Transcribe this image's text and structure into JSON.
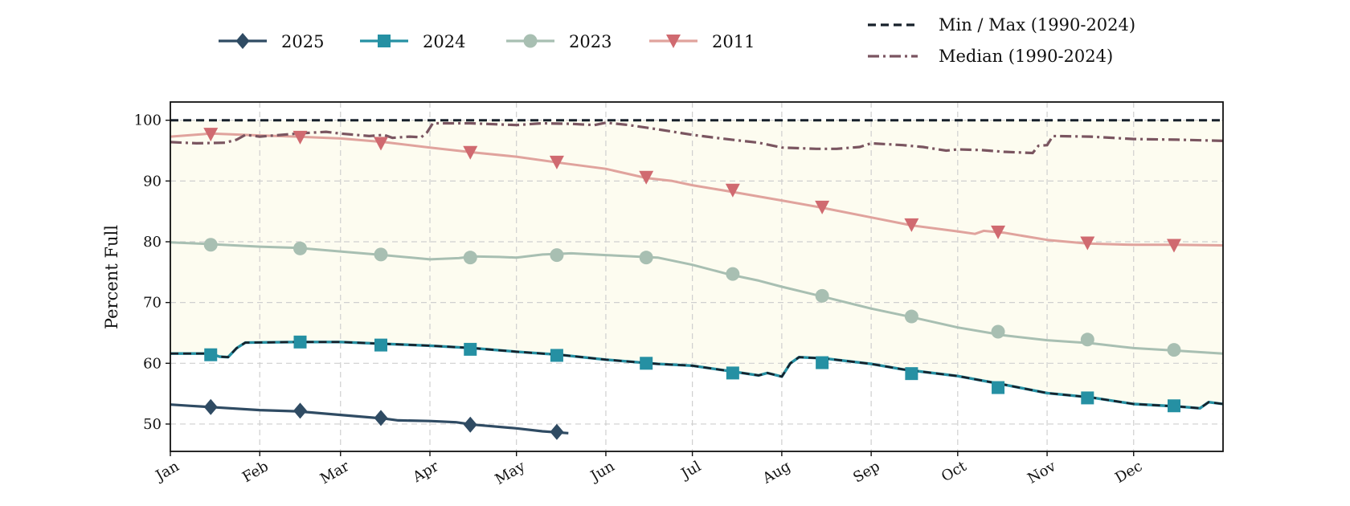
{
  "chart_data": {
    "type": "line",
    "ylabel": "Percent Full",
    "xlabel": "",
    "ylim": [
      45.5,
      103
    ],
    "yticks": [
      50,
      60,
      70,
      80,
      90,
      100
    ],
    "x_range": [
      1,
      366
    ],
    "x_unit": "day of year",
    "month_ticks": [
      {
        "label": "Jan",
        "day": 1
      },
      {
        "label": "Feb",
        "day": 32
      },
      {
        "label": "Mar",
        "day": 60
      },
      {
        "label": "Apr",
        "day": 91
      },
      {
        "label": "May",
        "day": 121
      },
      {
        "label": "Jun",
        "day": 152
      },
      {
        "label": "Jul",
        "day": 182
      },
      {
        "label": "Aug",
        "day": 213
      },
      {
        "label": "Sep",
        "day": 244
      },
      {
        "label": "Oct",
        "day": 274
      },
      {
        "label": "Nov",
        "day": 305
      },
      {
        "label": "Dec",
        "day": 335
      }
    ],
    "grid": true,
    "legend_placement": "top",
    "band": {
      "name": "Min / Max (1990-2024)",
      "color": "#fdfcf0",
      "line_color": "#17212b",
      "max": [
        [
          1,
          100
        ],
        [
          366,
          100
        ]
      ],
      "min": [
        [
          1,
          61.6
        ],
        [
          15,
          61.6
        ],
        [
          18,
          61.1
        ],
        [
          21,
          61.0
        ],
        [
          24,
          62.5
        ],
        [
          27,
          63.4
        ],
        [
          45,
          63.5
        ],
        [
          60,
          63.5
        ],
        [
          75,
          63.2
        ],
        [
          91,
          62.9
        ],
        [
          106,
          62.5
        ],
        [
          121,
          61.9
        ],
        [
          136,
          61.4
        ],
        [
          152,
          60.6
        ],
        [
          170,
          59.9
        ],
        [
          182,
          59.6
        ],
        [
          195,
          58.7
        ],
        [
          205,
          58.0
        ],
        [
          208,
          58.4
        ],
        [
          213,
          57.8
        ],
        [
          216,
          60.0
        ],
        [
          219,
          61.0
        ],
        [
          228,
          60.8
        ],
        [
          244,
          59.9
        ],
        [
          255,
          59.0
        ],
        [
          274,
          57.9
        ],
        [
          290,
          56.5
        ],
        [
          305,
          55.1
        ],
        [
          320,
          54.4
        ],
        [
          335,
          53.3
        ],
        [
          350,
          52.9
        ],
        [
          358,
          52.6
        ],
        [
          361,
          53.6
        ],
        [
          366,
          53.3
        ]
      ]
    },
    "median": {
      "name": "Median (1990-2024)",
      "color": "#7a5560",
      "points": [
        [
          1,
          96.4
        ],
        [
          10,
          96.2
        ],
        [
          20,
          96.3
        ],
        [
          24,
          96.8
        ],
        [
          27,
          97.6
        ],
        [
          32,
          97.3
        ],
        [
          45,
          97.8
        ],
        [
          55,
          98.1
        ],
        [
          60,
          97.8
        ],
        [
          70,
          97.4
        ],
        [
          75,
          97.6
        ],
        [
          78,
          97.1
        ],
        [
          84,
          97.3
        ],
        [
          88,
          97.2
        ],
        [
          90,
          98.0
        ],
        [
          92,
          99.5
        ],
        [
          105,
          99.5
        ],
        [
          121,
          99.2
        ],
        [
          130,
          99.5
        ],
        [
          140,
          99.4
        ],
        [
          148,
          99.2
        ],
        [
          152,
          99.6
        ],
        [
          160,
          99.2
        ],
        [
          170,
          98.5
        ],
        [
          182,
          97.6
        ],
        [
          192,
          97.0
        ],
        [
          205,
          96.3
        ],
        [
          213,
          95.5
        ],
        [
          225,
          95.3
        ],
        [
          232,
          95.3
        ],
        [
          240,
          95.6
        ],
        [
          244,
          96.2
        ],
        [
          255,
          95.9
        ],
        [
          262,
          95.6
        ],
        [
          270,
          95.0
        ],
        [
          274,
          95.2
        ],
        [
          282,
          95.1
        ],
        [
          290,
          94.8
        ],
        [
          300,
          94.6
        ],
        [
          302,
          95.8
        ],
        [
          305,
          95.9
        ],
        [
          307,
          97.4
        ],
        [
          320,
          97.3
        ],
        [
          335,
          96.9
        ],
        [
          350,
          96.8
        ],
        [
          366,
          96.6
        ]
      ]
    },
    "series": [
      {
        "name": "2025",
        "color": "#2f4b63",
        "marker": "diamond",
        "points": [
          [
            1,
            53.2
          ],
          [
            8,
            53.0
          ],
          [
            15,
            52.8
          ],
          [
            32,
            52.3
          ],
          [
            45,
            52.1
          ],
          [
            60,
            51.5
          ],
          [
            75,
            50.9
          ],
          [
            80,
            50.6
          ],
          [
            91,
            50.5
          ],
          [
            100,
            50.3
          ],
          [
            106,
            49.9
          ],
          [
            121,
            49.3
          ],
          [
            130,
            48.8
          ],
          [
            139,
            48.5
          ]
        ],
        "markers": [
          [
            15,
            52.8
          ],
          [
            46,
            52.2
          ],
          [
            74,
            51.0
          ],
          [
            105,
            49.9
          ],
          [
            135,
            48.7
          ]
        ]
      },
      {
        "name": "2024",
        "color": "#2590a3",
        "marker": "square",
        "points": [
          [
            1,
            61.6
          ],
          [
            15,
            61.6
          ],
          [
            18,
            61.1
          ],
          [
            21,
            61.0
          ],
          [
            24,
            62.5
          ],
          [
            27,
            63.4
          ],
          [
            45,
            63.5
          ],
          [
            60,
            63.5
          ],
          [
            75,
            63.2
          ],
          [
            91,
            62.9
          ],
          [
            106,
            62.5
          ],
          [
            121,
            61.9
          ],
          [
            136,
            61.4
          ],
          [
            152,
            60.6
          ],
          [
            170,
            59.9
          ],
          [
            182,
            59.6
          ],
          [
            195,
            58.7
          ],
          [
            205,
            58.0
          ],
          [
            208,
            58.4
          ],
          [
            213,
            57.8
          ],
          [
            216,
            60.0
          ],
          [
            219,
            61.0
          ],
          [
            228,
            60.8
          ],
          [
            244,
            59.9
          ],
          [
            255,
            59.0
          ],
          [
            274,
            57.9
          ],
          [
            290,
            56.5
          ],
          [
            305,
            55.1
          ],
          [
            320,
            54.4
          ],
          [
            335,
            53.3
          ],
          [
            350,
            52.9
          ],
          [
            358,
            52.6
          ],
          [
            361,
            53.6
          ],
          [
            366,
            53.3
          ]
        ],
        "markers": [
          [
            15,
            61.4
          ],
          [
            46,
            63.5
          ],
          [
            74,
            63.0
          ],
          [
            105,
            62.3
          ],
          [
            135,
            61.3
          ],
          [
            166,
            60.0
          ],
          [
            196,
            58.4
          ],
          [
            227,
            60.1
          ],
          [
            258,
            58.3
          ],
          [
            288,
            56.0
          ],
          [
            319,
            54.3
          ],
          [
            349,
            53.0
          ]
        ]
      },
      {
        "name": "2023",
        "color": "#a8bfb2",
        "marker": "circle",
        "points": [
          [
            1,
            79.9
          ],
          [
            15,
            79.6
          ],
          [
            32,
            79.2
          ],
          [
            45,
            79.0
          ],
          [
            60,
            78.4
          ],
          [
            75,
            77.8
          ],
          [
            91,
            77.1
          ],
          [
            101,
            77.3
          ],
          [
            106,
            77.6
          ],
          [
            115,
            77.5
          ],
          [
            121,
            77.4
          ],
          [
            130,
            77.9
          ],
          [
            140,
            78.1
          ],
          [
            152,
            77.8
          ],
          [
            170,
            77.4
          ],
          [
            182,
            76.2
          ],
          [
            195,
            74.6
          ],
          [
            205,
            73.6
          ],
          [
            213,
            72.6
          ],
          [
            227,
            71.0
          ],
          [
            244,
            69.0
          ],
          [
            258,
            67.6
          ],
          [
            274,
            65.9
          ],
          [
            290,
            64.6
          ],
          [
            305,
            63.8
          ],
          [
            320,
            63.3
          ],
          [
            335,
            62.5
          ],
          [
            349,
            62.1
          ],
          [
            366,
            61.6
          ]
        ],
        "markers": [
          [
            15,
            79.5
          ],
          [
            46,
            78.9
          ],
          [
            74,
            77.9
          ],
          [
            105,
            77.4
          ],
          [
            135,
            77.8
          ],
          [
            166,
            77.4
          ],
          [
            196,
            74.7
          ],
          [
            227,
            71.1
          ],
          [
            258,
            67.7
          ],
          [
            288,
            65.2
          ],
          [
            319,
            63.9
          ],
          [
            349,
            62.2
          ]
        ]
      },
      {
        "name": "2011",
        "color": "#e0a39d",
        "marker_color": "#d06a70",
        "marker": "triangle-down",
        "points": [
          [
            1,
            97.3
          ],
          [
            15,
            97.8
          ],
          [
            32,
            97.5
          ],
          [
            45,
            97.3
          ],
          [
            60,
            97.0
          ],
          [
            75,
            96.4
          ],
          [
            91,
            95.5
          ],
          [
            106,
            94.7
          ],
          [
            121,
            94.0
          ],
          [
            136,
            93.0
          ],
          [
            152,
            92.0
          ],
          [
            166,
            90.5
          ],
          [
            175,
            90.0
          ],
          [
            182,
            89.3
          ],
          [
            196,
            88.2
          ],
          [
            213,
            86.8
          ],
          [
            227,
            85.6
          ],
          [
            244,
            84.0
          ],
          [
            258,
            82.7
          ],
          [
            274,
            81.7
          ],
          [
            280,
            81.3
          ],
          [
            283,
            81.8
          ],
          [
            290,
            81.5
          ],
          [
            305,
            80.3
          ],
          [
            319,
            79.7
          ],
          [
            335,
            79.5
          ],
          [
            349,
            79.5
          ],
          [
            366,
            79.4
          ]
        ],
        "markers": [
          [
            15,
            97.7
          ],
          [
            46,
            97.2
          ],
          [
            74,
            96.2
          ],
          [
            105,
            94.7
          ],
          [
            135,
            93.1
          ],
          [
            166,
            90.6
          ],
          [
            196,
            88.5
          ],
          [
            227,
            85.7
          ],
          [
            258,
            82.8
          ],
          [
            288,
            81.6
          ],
          [
            319,
            79.8
          ],
          [
            349,
            79.4
          ]
        ]
      }
    ]
  }
}
